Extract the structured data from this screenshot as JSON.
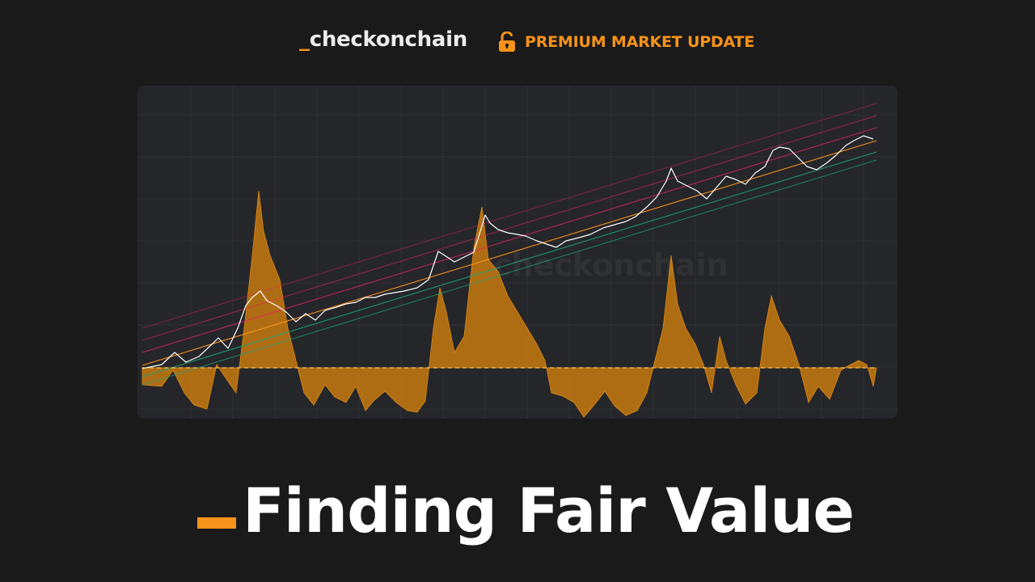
{
  "header": {
    "brand_underscore": "_",
    "brand_name": "checkonchain",
    "premium_label": "PREMIUM MARKET UPDATE"
  },
  "chart": {
    "watermark": "checkonchain"
  },
  "title": {
    "text": "Finding Fair Value"
  },
  "colors": {
    "accent": "#f7931a",
    "background": "#1a1a1a",
    "card": "#25262a",
    "price": "#ffffff",
    "band_red": "#e0245e",
    "band_orange": "#f7931a",
    "band_green": "#1aa37a",
    "oscillator_fill": "#c87a0f"
  },
  "icons": {
    "lock": "lock-icon"
  }
}
